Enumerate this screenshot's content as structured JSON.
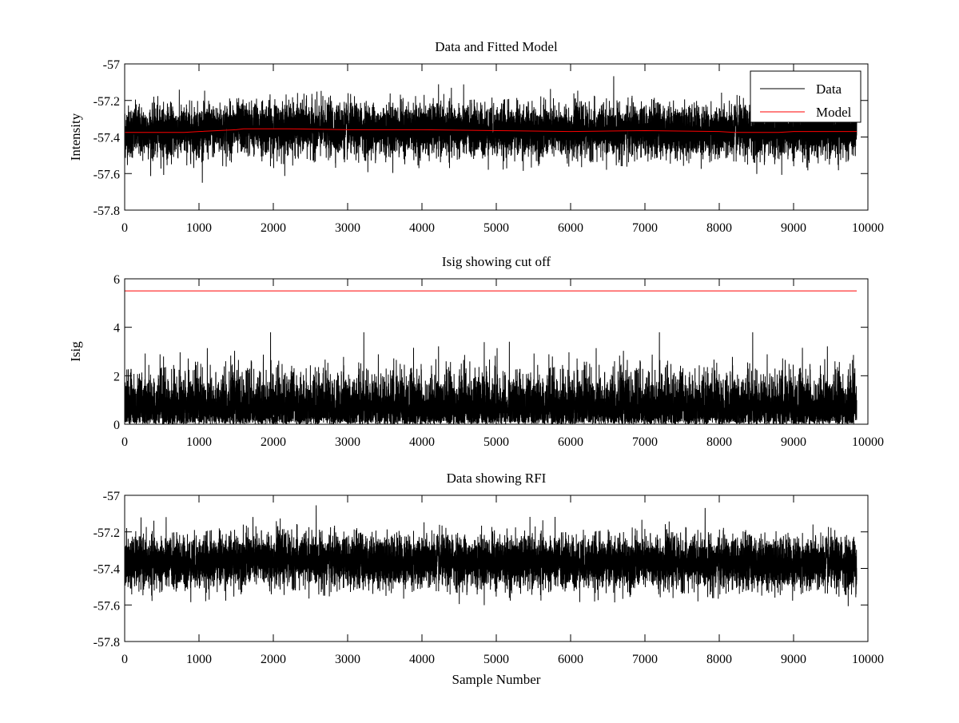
{
  "figure": {
    "background": "#ffffff"
  },
  "chart_data": [
    {
      "type": "line",
      "title": "Data and Fitted Model",
      "xlabel": "",
      "ylabel": "Intensity",
      "xlim": [
        0,
        10000
      ],
      "ylim": [
        -57.8,
        -57
      ],
      "xticks": [
        0,
        1000,
        2000,
        3000,
        4000,
        5000,
        6000,
        7000,
        8000,
        9000,
        10000
      ],
      "yticks": [
        -57,
        -57.2,
        -57.4,
        -57.6,
        -57.8
      ],
      "grid": false,
      "legend": {
        "position": "top-right",
        "entries": [
          "Data",
          "Model"
        ]
      },
      "series": [
        {
          "name": "Data",
          "color": "#000000",
          "kind": "noise",
          "n_samples": 9850,
          "baseline": {
            "x": [
              0,
              1000,
              1600,
              2200,
              3000,
              4000,
              5000,
              6000,
              7000,
              8000,
              8800,
              9850
            ],
            "y": [
              -57.37,
              -57.37,
              -57.35,
              -57.35,
              -57.36,
              -57.36,
              -57.365,
              -57.37,
              -57.365,
              -57.37,
              -57.37,
              -57.375
            ]
          },
          "spread_sd": 0.07,
          "min": -57.71,
          "max": -57.03
        },
        {
          "name": "Model",
          "color": "#ff0000",
          "x": [
            0,
            800,
            1000,
            1500,
            1600,
            2200,
            3000,
            4000,
            5000,
            6000,
            7000,
            8000,
            8200,
            8800,
            9000,
            9850
          ],
          "y": [
            -57.375,
            -57.375,
            -57.37,
            -57.36,
            -57.355,
            -57.355,
            -57.36,
            -57.36,
            -57.365,
            -57.37,
            -57.365,
            -57.37,
            -57.375,
            -57.375,
            -57.37,
            -57.37
          ]
        }
      ]
    },
    {
      "type": "line",
      "title": "Isig showing cut off",
      "xlabel": "",
      "ylabel": "Isig",
      "xlim": [
        0,
        10000
      ],
      "ylim": [
        0,
        6
      ],
      "xticks": [
        0,
        1000,
        2000,
        3000,
        4000,
        5000,
        6000,
        7000,
        8000,
        9000,
        10000
      ],
      "yticks": [
        6,
        4,
        2,
        0
      ],
      "grid": false,
      "series": [
        {
          "color": "#000000",
          "kind": "abs-noise",
          "n_samples": 9850,
          "spread_sd": 0.95,
          "min": 0,
          "max": 3.8
        },
        {
          "color": "#ff0000",
          "x": [
            0,
            9850
          ],
          "y": [
            5.5,
            5.5
          ]
        }
      ]
    },
    {
      "type": "line",
      "title": "Data showing RFI",
      "xlabel": "Sample Number",
      "ylabel": "",
      "xlim": [
        0,
        10000
      ],
      "ylim": [
        -57.8,
        -57
      ],
      "xticks": [
        0,
        1000,
        2000,
        3000,
        4000,
        5000,
        6000,
        7000,
        8000,
        9000,
        10000
      ],
      "yticks": [
        -57,
        -57.2,
        -57.4,
        -57.6,
        -57.8
      ],
      "grid": false,
      "series": [
        {
          "color": "#000000",
          "kind": "noise",
          "n_samples": 9850,
          "baseline": {
            "x": [
              0,
              1000,
              1600,
              2200,
              3000,
              4000,
              5000,
              6000,
              7000,
              8000,
              8800,
              9850
            ],
            "y": [
              -57.37,
              -57.37,
              -57.35,
              -57.35,
              -57.36,
              -57.36,
              -57.365,
              -57.37,
              -57.365,
              -57.37,
              -57.37,
              -57.375
            ]
          },
          "spread_sd": 0.07,
          "min": -57.71,
          "max": -57.03
        }
      ]
    }
  ]
}
